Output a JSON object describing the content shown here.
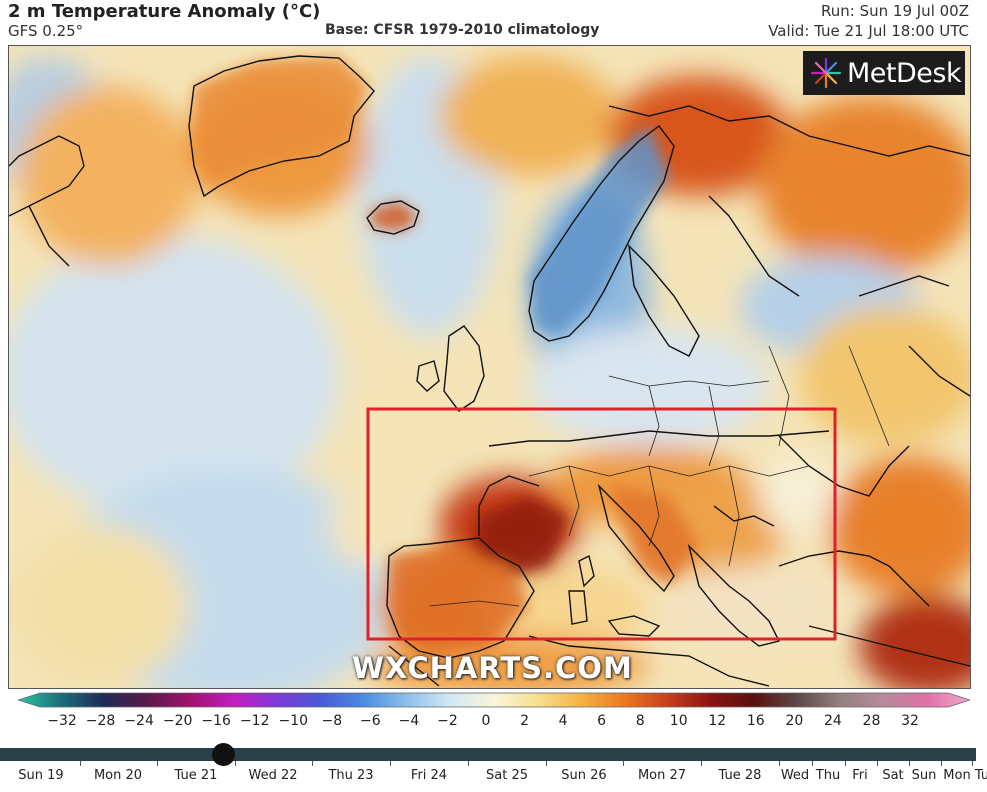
{
  "header": {
    "title": "2 m Temperature Anomaly (°C)",
    "model": "GFS 0.25°",
    "base": "Base: CFSR 1979-2010 climatology",
    "run": "Run: Sun 19 Jul 00Z",
    "valid": "Valid: Tue 21 Jul 18:00 UTC"
  },
  "logo": {
    "text": "MetDesk"
  },
  "watermark": "WXCHARTS.COM",
  "colorbar": {
    "ticks": [
      "−32",
      "−28",
      "−24",
      "−20",
      "−16",
      "−12",
      "−10",
      "−8",
      "−6",
      "−4",
      "−2",
      "0",
      "2",
      "4",
      "6",
      "8",
      "10",
      "12",
      "16",
      "20",
      "24",
      "28",
      "32"
    ],
    "colors": [
      "#2ec4a0",
      "#1b6d7a",
      "#1e2a55",
      "#5a1a4a",
      "#a0126f",
      "#c21ec0",
      "#7b3ad9",
      "#4a5ad6",
      "#4a8ee0",
      "#8ec1ea",
      "#d4e7f4",
      "#f9f4dc",
      "#f8e08c",
      "#f5b346",
      "#ea7a22",
      "#c8401c",
      "#8c1414",
      "#5a1010",
      "#5c4848",
      "#948080",
      "#b88a9a",
      "#e070a8",
      "#f0a8cc"
    ]
  },
  "timeline": {
    "days": [
      "Sun 19",
      "Mon 20",
      "Tue 21",
      "Wed 22",
      "Thu 23",
      "Fri 24",
      "Sat 25",
      "Sun 26",
      "Mon 27",
      "Tue 28",
      "Wed",
      "Thu",
      "Fri",
      "Sat",
      "Sun",
      "Mon",
      "Tu"
    ],
    "current": "Tue 21 Jul 18:00 UTC"
  },
  "highlight": {
    "color": "#e0202a",
    "region": "Southern Europe"
  }
}
